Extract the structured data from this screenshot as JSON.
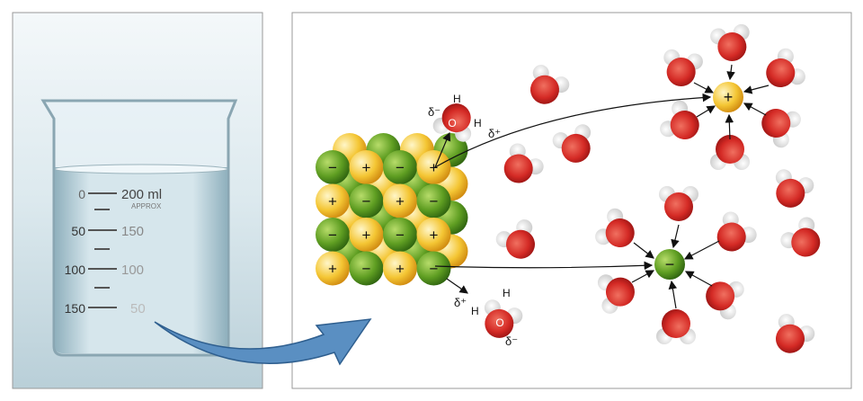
{
  "beaker": {
    "scale_left": [
      "0",
      "50",
      "100",
      "150"
    ],
    "scale_right": [
      "200 ml",
      "150",
      "100",
      "50"
    ],
    "approx": "APPROX"
  },
  "lattice": {
    "rows": [
      [
        "-",
        "+",
        "-",
        "+"
      ],
      [
        "+",
        "-",
        "+",
        "-"
      ],
      [
        "-",
        "+",
        "-",
        "+"
      ],
      [
        "+",
        "-",
        "+",
        "-"
      ]
    ]
  },
  "labels": {
    "top": {
      "delta_minus": "δ⁻",
      "h1": "H",
      "o": "O",
      "h2": "H",
      "delta_plus": "δ⁺"
    },
    "bottom": {
      "delta_plus": "δ⁺",
      "h1": "H",
      "h2": "H",
      "o": "O",
      "delta_minus": "δ⁻"
    },
    "cation": "+",
    "anion": "−"
  },
  "colors": {
    "cation": "#f2c230",
    "anion": "#5e9e22",
    "oxygen": "#d42a25",
    "hydrogen": "#ffffff",
    "arrow": "#4a7fb0"
  }
}
